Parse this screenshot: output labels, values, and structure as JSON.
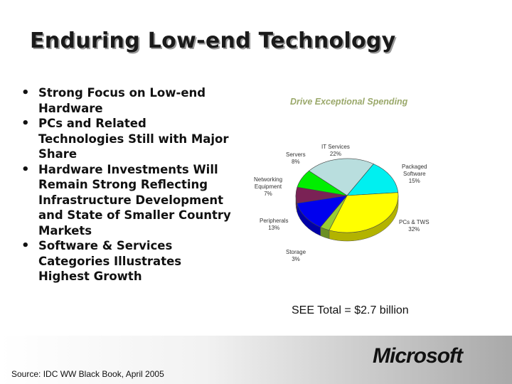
{
  "slide": {
    "title": "Enduring Low-end Technology",
    "bullets": [
      "Strong Focus on Low-end Hardware",
      "PCs and Related Technologies Still with Major Share",
      "Hardware Investments Will Remain Strong Reflecting Infrastructure Development and State of Smaller Country Markets",
      "Software & Services Categories Illustrates Highest Growth"
    ],
    "source": "Source: IDC WW Black Book, April 2005",
    "logo_text": "Microsoft"
  },
  "chart_data": {
    "type": "pie",
    "title": "Drive Exceptional Spending",
    "total_label": "SEE Total = $2.7 billion",
    "slices": [
      {
        "name": "IT Services",
        "value": 22,
        "label": "22%",
        "color": "#b9dede"
      },
      {
        "name": "Packaged Software",
        "value": 15,
        "label": "15%",
        "color": "#00f0f0"
      },
      {
        "name": "PCs & TWS",
        "value": 32,
        "label": "32%",
        "color": "#ffff00"
      },
      {
        "name": "Storage",
        "value": 3,
        "label": "3%",
        "color": "#99cc33"
      },
      {
        "name": "Peripherals",
        "value": 13,
        "label": "13%",
        "color": "#0000ee"
      },
      {
        "name": "Networking Equipment",
        "value": 7,
        "label": "7%",
        "color": "#7a2255"
      },
      {
        "name": "Servers",
        "value": 8,
        "label": "8%",
        "color": "#00ee00"
      }
    ]
  }
}
